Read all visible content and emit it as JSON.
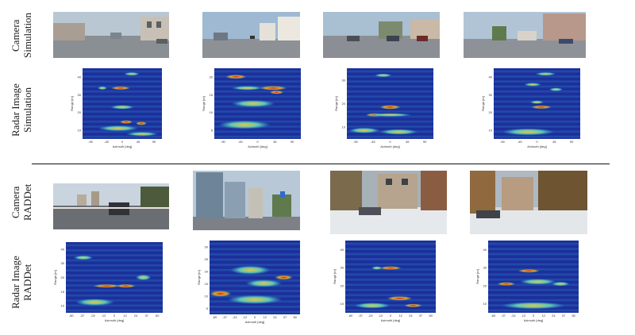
{
  "row_labels": [
    {
      "id": "cam-sim",
      "lines": [
        "Camera",
        "Simulation"
      ]
    },
    {
      "id": "radar-sim",
      "lines": [
        "Radar Image",
        "Simulation"
      ]
    },
    {
      "id": "cam-raddet",
      "lines": [
        "Camera",
        "RADDet"
      ]
    },
    {
      "id": "radar-raddet",
      "lines": [
        "Radar Image",
        "RADDet"
      ]
    }
  ],
  "axis": {
    "azimuth_label": "Azimuth [deg]",
    "range_label": "Range [m]"
  },
  "sim_panels": [
    {
      "xticks": [
        "-90",
        "-45",
        "0",
        "45",
        "90"
      ],
      "yticks": [
        "40",
        "30",
        "20",
        "10"
      ]
    },
    {
      "xticks": [
        "-90",
        "-45",
        "0",
        "45",
        "90"
      ],
      "yticks": [
        "20",
        "15",
        "10",
        "5"
      ]
    },
    {
      "xticks": [
        "-90",
        "-45",
        "0",
        "45",
        "90"
      ],
      "yticks": [
        "30",
        "20",
        "10"
      ]
    },
    {
      "xticks": [
        "-90",
        "-45",
        "0",
        "45",
        "90"
      ],
      "yticks": [
        "40",
        "30",
        "20",
        "10"
      ]
    }
  ],
  "raddet_panels": [
    {
      "xticks": [
        "-60",
        "-37",
        "-24",
        "-12",
        "0",
        "12",
        "24",
        "37",
        "60"
      ],
      "yticks": [
        "40",
        "30",
        "20",
        "15",
        "10"
      ]
    },
    {
      "xticks": [
        "-60",
        "-37",
        "-24",
        "-12",
        "0",
        "12",
        "24",
        "37",
        "60"
      ],
      "yticks": [
        "30",
        "25",
        "20",
        "15",
        "10",
        "5"
      ]
    },
    {
      "xticks": [
        "-60",
        "-37",
        "-24",
        "-12",
        "0",
        "12",
        "24",
        "37",
        "60"
      ],
      "yticks": [
        "40",
        "30",
        "20",
        "10"
      ]
    },
    {
      "xticks": [
        "-60",
        "-37",
        "-24",
        "-12",
        "0",
        "12",
        "24",
        "37",
        "60"
      ],
      "yticks": [
        "40",
        "30",
        "20",
        "10"
      ]
    }
  ],
  "colors": {
    "heat_low": "#1c2f9c",
    "heat_mid": "#35a9d8",
    "heat_high": "#d8342a"
  }
}
